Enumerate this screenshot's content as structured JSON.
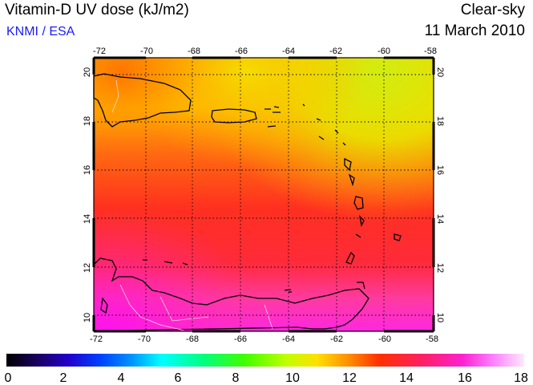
{
  "header": {
    "title": "Vitamin-D UV dose (kJ/m2)",
    "org": "KNMI / ESA",
    "sky": "Clear-sky",
    "date": "11 March 2010"
  },
  "map": {
    "lon_ticks": [
      "-72",
      "-70",
      "-68",
      "-66",
      "-64",
      "-62",
      "-60",
      "-58"
    ],
    "lat_ticks": [
      "10",
      "12",
      "14",
      "16",
      "18",
      "20"
    ],
    "colors": {
      "yellow_green": "#d8ea10",
      "yellow": "#f6e200",
      "orange": "#ff9900",
      "red_orange": "#ff5010",
      "red": "#ff2a30",
      "pink": "#ff38a0",
      "magenta": "#ff20e8"
    }
  },
  "colorbar": {
    "labels": [
      "0",
      "2",
      "4",
      "6",
      "8",
      "10",
      "12",
      "14",
      "16",
      "18"
    ]
  }
}
